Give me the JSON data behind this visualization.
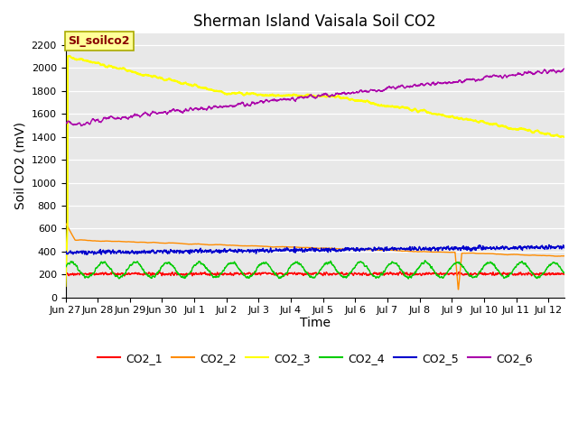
{
  "title": "Sherman Island Vaisala Soil CO2",
  "ylabel": "Soil CO2 (mV)",
  "xlabel": "Time",
  "annotation_text": "SI_soilco2",
  "annotation_bg": "#ffff99",
  "annotation_border": "#aaaa00",
  "annotation_text_color": "#880000",
  "xlim_days": [
    0,
    15.5
  ],
  "ylim": [
    0,
    2300
  ],
  "yticks": [
    0,
    200,
    400,
    600,
    800,
    1000,
    1200,
    1400,
    1600,
    1800,
    2000,
    2200
  ],
  "xtick_labels": [
    "Jun 27",
    "Jun 28",
    "Jun 29",
    "Jun 30",
    "Jul 1",
    "Jul 2",
    "Jul 3",
    "Jul 4",
    "Jul 5",
    "Jul 6",
    "Jul 7",
    "Jul 8",
    "Jul 9",
    "Jul 10",
    "Jul 11",
    "Jul 12"
  ],
  "xtick_positions": [
    0,
    1,
    2,
    3,
    4,
    5,
    6,
    7,
    8,
    9,
    10,
    11,
    12,
    13,
    14,
    15
  ],
  "fig_bg": "#ffffff",
  "plot_bg": "#e8e8e8",
  "grid_color": "#ffffff",
  "series": [
    {
      "label": "CO2_1",
      "color": "#ff0000",
      "lw": 1.0
    },
    {
      "label": "CO2_2",
      "color": "#ff8c00",
      "lw": 1.0
    },
    {
      "label": "CO2_3",
      "color": "#ffff00",
      "lw": 1.5
    },
    {
      "label": "CO2_4",
      "color": "#00cc00",
      "lw": 1.0
    },
    {
      "label": "CO2_5",
      "color": "#0000cc",
      "lw": 1.0
    },
    {
      "label": "CO2_6",
      "color": "#aa00aa",
      "lw": 1.0
    }
  ],
  "title_fontsize": 12,
  "axis_label_fontsize": 10,
  "tick_fontsize": 8,
  "legend_fontsize": 9
}
